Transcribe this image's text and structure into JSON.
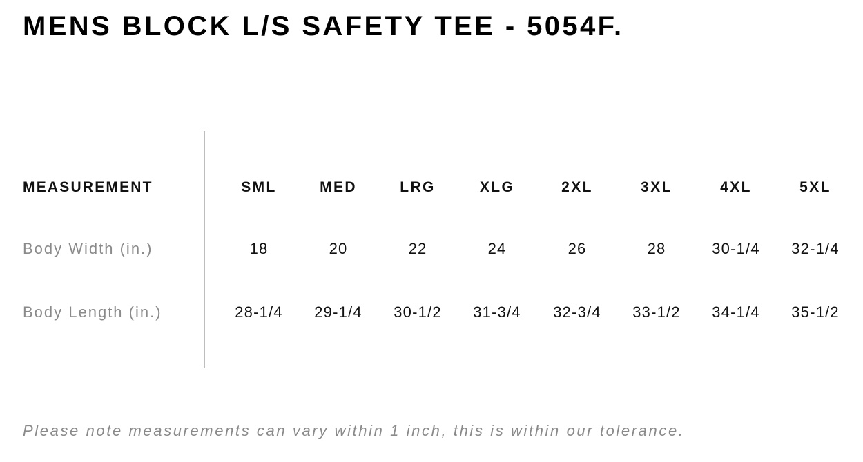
{
  "title": "MENS BLOCK L/S SAFETY TEE - 5054F.",
  "table": {
    "header_label": "MEASUREMENT",
    "sizes": [
      "SML",
      "MED",
      "LRG",
      "XLG",
      "2XL",
      "3XL",
      "4XL",
      "5XL"
    ],
    "rows": [
      {
        "label": "Body Width (in.)",
        "values": [
          "18",
          "20",
          "22",
          "24",
          "26",
          "28",
          "30-1/4",
          "32-1/4"
        ]
      },
      {
        "label": "Body Length (in.)",
        "values": [
          "28-1/4",
          "29-1/4",
          "30-1/2",
          "31-3/4",
          "32-3/4",
          "33-1/2",
          "34-1/4",
          "35-1/2"
        ]
      }
    ]
  },
  "note": "Please note measurements can vary within 1 inch, this is within our tolerance."
}
